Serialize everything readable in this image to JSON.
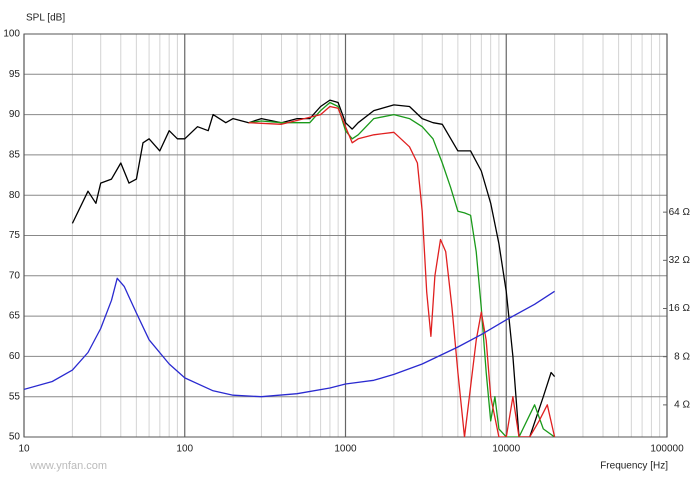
{
  "chart_data": {
    "type": "line",
    "x_label": "Frequency [Hz]",
    "y_label": "SPL [dB]",
    "watermark": "www.ynfan.com",
    "xscale": "log",
    "xlim": [
      10,
      100000
    ],
    "xticks": [
      10,
      100,
      1000,
      10000,
      100000
    ],
    "xminorticks": [
      20,
      30,
      40,
      50,
      60,
      70,
      80,
      90,
      200,
      300,
      400,
      500,
      600,
      700,
      800,
      900,
      2000,
      3000,
      4000,
      5000,
      6000,
      7000,
      8000,
      9000,
      20000,
      30000,
      40000,
      50000,
      60000,
      70000,
      80000,
      90000
    ],
    "ylim": [
      50,
      100
    ],
    "yticks": [
      50,
      55,
      60,
      65,
      70,
      75,
      80,
      85,
      90,
      95,
      100
    ],
    "y2scale": "log",
    "y2lim": [
      2.52,
      830
    ],
    "y2ticks": [
      {
        "value": 4,
        "label": "4 Ω"
      },
      {
        "value": 8,
        "label": "8 Ω"
      },
      {
        "value": 16,
        "label": "16 Ω"
      },
      {
        "value": 32,
        "label": "32 Ω"
      },
      {
        "value": 64,
        "label": "64 Ω"
      }
    ],
    "grid": true,
    "series": [
      {
        "color": "#000000",
        "x": [
          20,
          25,
          28,
          30,
          35,
          40,
          45,
          50,
          55,
          60,
          70,
          80,
          90,
          100,
          120,
          140,
          150,
          180,
          200,
          250,
          300,
          400,
          500,
          600,
          700,
          800,
          900,
          1000,
          1100,
          1200,
          1500,
          2000,
          2500,
          3000,
          3500,
          4000,
          5000,
          6000,
          7000,
          8000,
          9000,
          10000,
          11000,
          12000,
          14000,
          17000,
          19000,
          20000
        ],
        "values": [
          76.5,
          80.5,
          79,
          81.5,
          82,
          84,
          81.5,
          82,
          86.5,
          87,
          85.5,
          88,
          87,
          87,
          88.5,
          88,
          90,
          89,
          89.5,
          89,
          89.5,
          89,
          89.5,
          89.5,
          91,
          91.8,
          91.5,
          89,
          88.2,
          89,
          90.5,
          91.2,
          91,
          89.5,
          89,
          88.8,
          85.5,
          85.5,
          83,
          79,
          74,
          68,
          60,
          50,
          50,
          55,
          58,
          57.5
        ]
      },
      {
        "color": "#1a9a1a",
        "x": [
          250,
          300,
          400,
          500,
          600,
          700,
          800,
          900,
          1000,
          1100,
          1200,
          1500,
          2000,
          2500,
          3000,
          3500,
          4000,
          4500,
          5000,
          5500,
          6000,
          6500,
          7000,
          7500,
          8000,
          8500,
          9000,
          10000,
          12000,
          15000,
          17000,
          20000
        ],
        "values": [
          89,
          89.2,
          89,
          89,
          89,
          90.5,
          91.5,
          91,
          88,
          87,
          87.5,
          89.5,
          90,
          89.5,
          88.5,
          87,
          84,
          81,
          78,
          77.8,
          77.5,
          73,
          66,
          58,
          52,
          55,
          51,
          50,
          50,
          54,
          51,
          50
        ]
      },
      {
        "color": "#e02020",
        "x": [
          250,
          400,
          700,
          800,
          900,
          1000,
          1100,
          1200,
          1500,
          2000,
          2500,
          2800,
          3000,
          3200,
          3400,
          3600,
          3900,
          4200,
          4600,
          5000,
          5500,
          6500,
          7000,
          7500,
          8000,
          9000,
          10000,
          11000,
          12000,
          14000,
          16000,
          18000,
          20000
        ],
        "values": [
          89,
          88.8,
          90,
          91,
          90.8,
          88.5,
          86.5,
          87,
          87.5,
          87.8,
          86,
          84,
          78,
          68,
          62.5,
          70,
          74.5,
          73,
          66,
          58,
          50,
          62,
          65.5,
          62,
          55,
          50,
          50,
          55,
          50,
          50,
          52,
          54,
          50
        ]
      },
      {
        "color": "#2a2ad0",
        "axis": "y2",
        "x": [
          10,
          15,
          20,
          25,
          30,
          35,
          38,
          42,
          50,
          60,
          80,
          100,
          150,
          200,
          300,
          500,
          800,
          1000,
          1500,
          2000,
          3000,
          5000,
          7000,
          10000,
          15000,
          20000
        ],
        "values": [
          5.0,
          5.6,
          6.6,
          8.5,
          12,
          18,
          24.7,
          22,
          15,
          10.2,
          7.2,
          5.9,
          4.9,
          4.6,
          4.5,
          4.7,
          5.1,
          5.4,
          5.7,
          6.2,
          7.2,
          9.2,
          11,
          13.6,
          17,
          20.5
        ]
      }
    ]
  }
}
